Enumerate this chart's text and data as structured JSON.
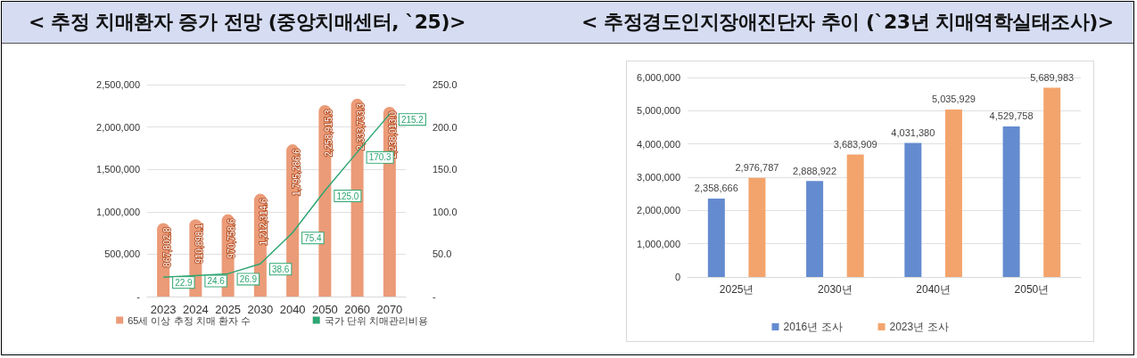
{
  "chart_data": [
    {
      "type": "bar",
      "title": "< 추정 치매환자 증가 전망 (중앙치매센터, `25)>",
      "categories": [
        "2023",
        "2024",
        "2025",
        "2030",
        "2040",
        "2050",
        "2060",
        "2070"
      ],
      "series": [
        {
          "name": "65세 이상 추정 치매 환자 수",
          "color": "#eb9b78",
          "values": [
            867802.8,
            910898.1,
            970758.6,
            1212314.6,
            1795286.6,
            2258915.3,
            2333733.3,
            2238013.0
          ],
          "value_labels": [
            "867,802.8",
            "910,898.1",
            "970,758.6",
            "1,212,314.6",
            "1,795,286.6",
            "2,258,915.3",
            "2,333,733.3",
            "2,238,013.0"
          ]
        },
        {
          "name": "국가 단위 치매관리비용",
          "type": "line",
          "axis": "y2",
          "color": "#2ea672",
          "values": [
            22.9,
            24.6,
            26.9,
            38.6,
            75.4,
            125.0,
            170.3,
            215.2
          ],
          "value_labels": [
            "22.9",
            "24.6",
            "26.9",
            "38.6",
            "75.4",
            "125.0",
            "170.3",
            "215.2"
          ]
        }
      ],
      "ylim": [
        0,
        2500000
      ],
      "yticks": [
        {
          "value": 0,
          "label": "-"
        },
        {
          "value": 500000,
          "label": "500,000"
        },
        {
          "value": 1000000,
          "label": "1,000,000"
        },
        {
          "value": 1500000,
          "label": "1,500,000"
        },
        {
          "value": 2000000,
          "label": "2,000,000"
        },
        {
          "value": 2500000,
          "label": "2,500,000"
        }
      ],
      "y2lim": [
        0,
        250
      ],
      "y2ticks": [
        {
          "value": 0,
          "label": "-"
        },
        {
          "value": 50,
          "label": "50.0"
        },
        {
          "value": 100,
          "label": "100.0"
        },
        {
          "value": 150,
          "label": "150.0"
        },
        {
          "value": 200,
          "label": "200.0"
        },
        {
          "value": 250,
          "label": "250.0"
        }
      ],
      "grid": "y",
      "legend": "bottom",
      "marker": "none",
      "line_style": "solid"
    },
    {
      "type": "bar",
      "title": "< 추정경도인지장애진단자 추이 (`23년 치매역학실태조사)>",
      "categories": [
        "2025년",
        "2030년",
        "2040년",
        "2050년"
      ],
      "series": [
        {
          "name": "2016년 조사",
          "color": "#648bd0",
          "values": [
            2358666,
            2888922,
            4031380,
            4529758
          ],
          "value_labels": [
            "2,358,666",
            "2,888,922",
            "4,031,380",
            "4,529,758"
          ]
        },
        {
          "name": "2023년 조사",
          "color": "#f3a46c",
          "values": [
            2976787,
            3683909,
            5035929,
            5689983
          ],
          "value_labels": [
            "2,976,787",
            "3,683,909",
            "5,035,929",
            "5,689,983"
          ]
        }
      ],
      "ylim": [
        0,
        6000000
      ],
      "yticks": [
        0,
        {
          "value": 1000000,
          "label": "1,000,000"
        },
        {
          "value": 2000000,
          "label": "2,000,000"
        },
        {
          "value": 3000000,
          "label": "3,000,000"
        },
        {
          "value": 4000000,
          "label": "4,000,000"
        },
        {
          "value": 5000000,
          "label": "5,000,000"
        },
        {
          "value": 6000000,
          "label": "6,000,000"
        }
      ],
      "grid": "y",
      "legend": "bottom"
    }
  ]
}
